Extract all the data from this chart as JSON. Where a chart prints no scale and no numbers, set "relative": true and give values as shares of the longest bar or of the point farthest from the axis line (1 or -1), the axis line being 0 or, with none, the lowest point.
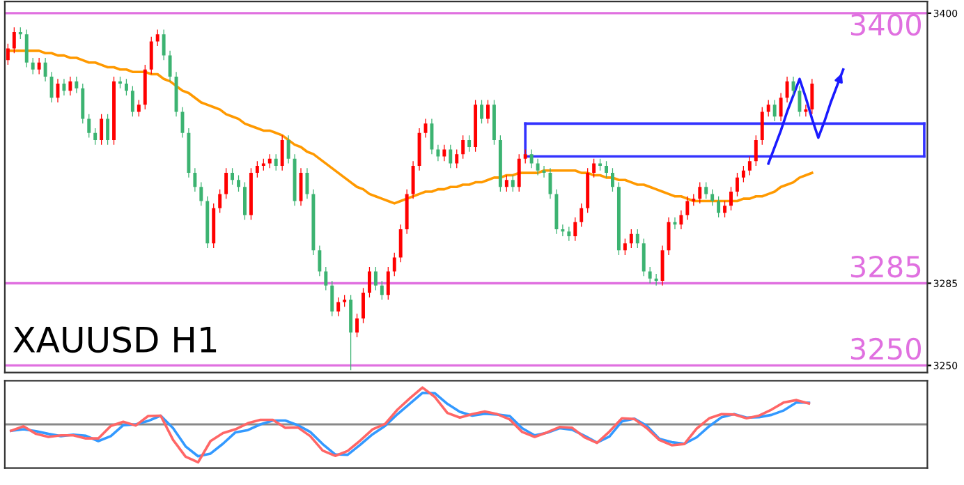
{
  "chart_data": [
    {
      "type": "candlestick",
      "title": "XAUUSD H1",
      "categories": [
        null,
        null,
        null,
        null,
        null,
        null,
        null,
        null,
        null,
        null,
        null,
        null,
        null,
        null,
        null,
        null,
        null,
        null,
        null,
        null,
        null,
        null,
        null,
        null,
        null,
        null,
        null,
        null,
        null,
        null,
        null,
        null,
        null,
        null,
        null,
        null,
        null,
        null,
        null,
        null,
        null,
        null,
        null,
        null,
        null,
        null,
        null,
        null,
        null,
        null,
        null,
        null,
        null,
        null,
        null,
        null,
        null,
        null,
        null,
        null,
        null,
        null,
        null,
        null,
        null,
        null,
        null,
        null,
        null,
        null,
        null,
        null,
        null,
        null,
        null,
        null,
        null,
        null,
        null,
        null,
        null,
        null,
        null,
        null,
        null,
        null,
        null,
        null,
        null,
        null,
        null,
        null,
        null,
        null,
        null,
        null,
        null,
        null,
        null,
        null,
        null,
        null,
        null,
        null,
        null,
        null,
        null,
        null,
        null,
        null,
        null,
        null,
        null,
        null,
        null,
        null,
        null,
        null,
        null,
        null,
        null,
        null,
        null,
        null,
        null,
        null,
        null,
        null,
        null,
        null,
        null,
        null,
        null,
        null,
        null,
        null,
        null,
        null,
        null,
        null,
        null,
        null,
        null,
        null,
        null,
        null,
        null,
        null
      ],
      "ohlc": [
        [
          3380,
          3387,
          3378,
          3385
        ],
        [
          3385,
          3394,
          3383,
          3392
        ],
        [
          3392,
          3394,
          3389,
          3391
        ],
        [
          3391,
          3393,
          3377,
          3379
        ],
        [
          3379,
          3381,
          3374,
          3376
        ],
        [
          3376,
          3381,
          3374,
          3379
        ],
        [
          3379,
          3381,
          3371,
          3373
        ],
        [
          3373,
          3375,
          3362,
          3364
        ],
        [
          3364,
          3372,
          3362,
          3370
        ],
        [
          3370,
          3372,
          3365,
          3367
        ],
        [
          3367,
          3373,
          3365,
          3371
        ],
        [
          3371,
          3373,
          3366,
          3368
        ],
        [
          3368,
          3370,
          3353,
          3355
        ],
        [
          3355,
          3357,
          3347,
          3349
        ],
        [
          3349,
          3351,
          3344,
          3346
        ],
        [
          3346,
          3357,
          3344,
          3355
        ],
        [
          3355,
          3357,
          3344,
          3346
        ],
        [
          3346,
          3373,
          3344,
          3371
        ],
        [
          3371,
          3373,
          3368,
          3370
        ],
        [
          3370,
          3372,
          3365,
          3367
        ],
        [
          3367,
          3369,
          3356,
          3358
        ],
        [
          3358,
          3363,
          3356,
          3361
        ],
        [
          3361,
          3378,
          3359,
          3376
        ],
        [
          3376,
          3390,
          3374,
          3388
        ],
        [
          3388,
          3393,
          3386,
          3391
        ],
        [
          3391,
          3393,
          3380,
          3382
        ],
        [
          3382,
          3384,
          3371,
          3373
        ],
        [
          3373,
          3375,
          3356,
          3358
        ],
        [
          3358,
          3360,
          3347,
          3349
        ],
        [
          3349,
          3351,
          3330,
          3332
        ],
        [
          3332,
          3334,
          3324,
          3326
        ],
        [
          3326,
          3328,
          3318,
          3320
        ],
        [
          3320,
          3322,
          3300,
          3302
        ],
        [
          3302,
          3319,
          3300,
          3317
        ],
        [
          3317,
          3325,
          3315,
          3323
        ],
        [
          3323,
          3334,
          3321,
          3332
        ],
        [
          3332,
          3334,
          3327,
          3329
        ],
        [
          3329,
          3331,
          3324,
          3326
        ],
        [
          3326,
          3328,
          3312,
          3314
        ],
        [
          3314,
          3334,
          3312,
          3332
        ],
        [
          3332,
          3337,
          3330,
          3335
        ],
        [
          3335,
          3338,
          3333,
          3336
        ],
        [
          3336,
          3340,
          3334,
          3338
        ],
        [
          3338,
          3340,
          3333,
          3335
        ],
        [
          3335,
          3348,
          3333,
          3346
        ],
        [
          3346,
          3348,
          3336,
          3338
        ],
        [
          3338,
          3340,
          3318,
          3320
        ],
        [
          3320,
          3334,
          3318,
          3332
        ],
        [
          3332,
          3334,
          3321,
          3323
        ],
        [
          3323,
          3325,
          3297,
          3299
        ],
        [
          3299,
          3301,
          3288,
          3290
        ],
        [
          3290,
          3292,
          3282,
          3284
        ],
        [
          3284,
          3286,
          3271,
          3273
        ],
        [
          3273,
          3279,
          3271,
          3277
        ],
        [
          3277,
          3280,
          3275,
          3278
        ],
        [
          3278,
          3280,
          3248,
          3264
        ],
        [
          3264,
          3272,
          3262,
          3270
        ],
        [
          3270,
          3283,
          3268,
          3281
        ],
        [
          3281,
          3292,
          3279,
          3290
        ],
        [
          3290,
          3292,
          3282,
          3284
        ],
        [
          3284,
          3286,
          3278,
          3280
        ],
        [
          3280,
          3292,
          3278,
          3290
        ],
        [
          3290,
          3298,
          3288,
          3296
        ],
        [
          3296,
          3310,
          3294,
          3308
        ],
        [
          3308,
          3325,
          3306,
          3323
        ],
        [
          3323,
          3337,
          3321,
          3335
        ],
        [
          3335,
          3351,
          3333,
          3349
        ],
        [
          3349,
          3355,
          3347,
          3353
        ],
        [
          3353,
          3355,
          3340,
          3342
        ],
        [
          3342,
          3344,
          3337,
          3339
        ],
        [
          3339,
          3344,
          3337,
          3342
        ],
        [
          3342,
          3344,
          3334,
          3336
        ],
        [
          3336,
          3342,
          3334,
          3340
        ],
        [
          3340,
          3348,
          3338,
          3346
        ],
        [
          3346,
          3348,
          3341,
          3343
        ],
        [
          3343,
          3363,
          3341,
          3361
        ],
        [
          3361,
          3363,
          3353,
          3355
        ],
        [
          3355,
          3363,
          3353,
          3361
        ],
        [
          3361,
          3363,
          3344,
          3346
        ],
        [
          3346,
          3348,
          3324,
          3326
        ],
        [
          3326,
          3331,
          3324,
          3329
        ],
        [
          3329,
          3331,
          3324,
          3326
        ],
        [
          3326,
          3340,
          3324,
          3338
        ],
        [
          3338,
          3342,
          3336,
          3340
        ],
        [
          3340,
          3342,
          3334,
          3336
        ],
        [
          3336,
          3338,
          3331,
          3333
        ],
        [
          3333,
          3335,
          3330,
          3332
        ],
        [
          3332,
          3334,
          3321,
          3323
        ],
        [
          3323,
          3325,
          3306,
          3308
        ],
        [
          3308,
          3310,
          3305,
          3307
        ],
        [
          3307,
          3309,
          3303,
          3305
        ],
        [
          3305,
          3313,
          3303,
          3311
        ],
        [
          3311,
          3319,
          3309,
          3317
        ],
        [
          3317,
          3334,
          3315,
          3332
        ],
        [
          3332,
          3338,
          3330,
          3336
        ],
        [
          3336,
          3338,
          3333,
          3335
        ],
        [
          3335,
          3337,
          3330,
          3332
        ],
        [
          3332,
          3334,
          3324,
          3326
        ],
        [
          3326,
          3328,
          3297,
          3299
        ],
        [
          3299,
          3304,
          3297,
          3302
        ],
        [
          3302,
          3308,
          3300,
          3306
        ],
        [
          3306,
          3308,
          3300,
          3302
        ],
        [
          3302,
          3304,
          3288,
          3290
        ],
        [
          3290,
          3292,
          3285,
          3287
        ],
        [
          3287,
          3289,
          3284,
          3286
        ],
        [
          3286,
          3301,
          3284,
          3299
        ],
        [
          3299,
          3313,
          3297,
          3311
        ],
        [
          3311,
          3313,
          3308,
          3310
        ],
        [
          3310,
          3316,
          3308,
          3314
        ],
        [
          3314,
          3322,
          3312,
          3320
        ],
        [
          3320,
          3323,
          3318,
          3321
        ],
        [
          3321,
          3328,
          3319,
          3326
        ],
        [
          3326,
          3328,
          3321,
          3323
        ],
        [
          3323,
          3325,
          3318,
          3320
        ],
        [
          3320,
          3322,
          3313,
          3315
        ],
        [
          3315,
          3320,
          3313,
          3318
        ],
        [
          3318,
          3326,
          3316,
          3324
        ],
        [
          3324,
          3332,
          3322,
          3330
        ],
        [
          3330,
          3335,
          3328,
          3333
        ],
        [
          3333,
          3339,
          3331,
          3337
        ],
        [
          3337,
          3348,
          3335,
          3346
        ],
        [
          3346,
          3360,
          3344,
          3358
        ],
        [
          3358,
          3363,
          3356,
          3361
        ],
        [
          3361,
          3363,
          3354,
          3356
        ],
        [
          3356,
          3366,
          3354,
          3364
        ],
        [
          3364,
          3373,
          3362,
          3371
        ],
        [
          3371,
          3373,
          3365,
          3367
        ],
        [
          3367,
          3369,
          3356,
          3358
        ],
        [
          3358,
          3361,
          3356,
          3359
        ],
        [
          3359,
          3372,
          3357,
          3370
        ],
        null,
        null,
        null,
        null,
        null,
        null,
        null,
        null,
        null,
        null,
        null,
        null,
        null,
        null,
        null,
        null,
        null,
        null
      ],
      "colors": [
        "#ff0000",
        "#ff0000",
        "#3cb371",
        "#3cb371",
        "#3cb371",
        "#ff0000",
        "#3cb371",
        "#3cb371",
        "#ff0000",
        "#3cb371",
        "#ff0000",
        "#3cb371",
        "#3cb371",
        "#3cb371",
        "#3cb371",
        "#ff0000",
        "#3cb371",
        "#ff0000",
        "#3cb371",
        "#3cb371",
        "#3cb371",
        "#ff0000",
        "#ff0000",
        "#ff0000",
        "#ff0000",
        "#3cb371",
        "#3cb371",
        "#3cb371",
        "#3cb371",
        "#3cb371",
        "#3cb371",
        "#3cb371",
        "#3cb371",
        "#ff0000",
        "#ff0000",
        "#ff0000",
        "#3cb371",
        "#3cb371",
        "#3cb371",
        "#ff0000",
        "#ff0000",
        "#ff0000",
        "#ff0000",
        "#3cb371",
        "#ff0000",
        "#3cb371",
        "#3cb371",
        "#ff0000",
        "#3cb371",
        "#3cb371",
        "#3cb371",
        "#3cb371",
        "#3cb371",
        "#ff0000",
        "#ff0000",
        "#3cb371",
        "#ff0000",
        "#ff0000",
        "#ff0000",
        "#3cb371",
        "#3cb371",
        "#ff0000",
        "#ff0000",
        "#ff0000",
        "#ff0000",
        "#ff0000",
        "#ff0000",
        "#ff0000",
        "#3cb371",
        "#3cb371",
        "#ff0000",
        "#3cb371",
        "#ff0000",
        "#ff0000",
        "#3cb371",
        "#ff0000",
        "#3cb371",
        "#ff0000",
        "#3cb371",
        "#3cb371",
        "#ff0000",
        "#3cb371",
        "#ff0000",
        "#ff0000",
        "#3cb371",
        "#3cb371",
        "#3cb371",
        "#3cb371",
        "#3cb371",
        "#3cb371",
        "#3cb371",
        "#ff0000",
        "#ff0000",
        "#ff0000",
        "#ff0000",
        "#3cb371",
        "#3cb371",
        "#3cb371",
        "#3cb371",
        "#ff0000",
        "#ff0000",
        "#3cb371",
        "#3cb371",
        "#3cb371",
        "#3cb371",
        "#ff0000",
        "#ff0000",
        "#3cb371",
        "#ff0000",
        "#ff0000",
        "#ff0000",
        "#ff0000",
        "#3cb371",
        "#3cb371",
        "#3cb371",
        "#ff0000",
        "#ff0000",
        "#ff0000",
        "#ff0000",
        "#ff0000",
        "#ff0000",
        "#ff0000",
        "#ff0000",
        "#3cb371",
        "#ff0000",
        "#ff0000",
        "#3cb371",
        "#3cb371",
        "#ff0000",
        "#ff0000",
        null,
        null,
        null,
        null,
        null,
        null,
        null,
        null,
        null,
        null,
        null,
        null,
        null,
        null,
        null,
        null,
        null,
        null
      ],
      "series": [
        {
          "type": "line",
          "color": "#ff9900",
          "values": [
            3384,
            3384,
            3384,
            3384,
            3384,
            3384,
            3383,
            3383,
            3382,
            3382,
            3381,
            3381,
            3380,
            3379,
            3379,
            3378,
            3377,
            3377,
            3376,
            3376,
            3375,
            3375,
            3375,
            3374,
            3374,
            3372,
            3371,
            3369,
            3367,
            3366,
            3364,
            3362,
            3361,
            3360,
            3359,
            3357,
            3356,
            3355,
            3353,
            3352,
            3351,
            3350,
            3350,
            3349,
            3348,
            3346,
            3344,
            3343,
            3341,
            3340,
            3338,
            3336,
            3334,
            3332,
            3330,
            3328,
            3326,
            3325,
            3323,
            3322,
            3321,
            3320,
            3319,
            3320,
            3321,
            3322,
            3323,
            3324,
            3324,
            3325,
            3325,
            3326,
            3326,
            3327,
            3327,
            3328,
            3328,
            3329,
            3330,
            3330,
            3331,
            3331,
            3332,
            3332,
            3332,
            3332,
            3333,
            3333,
            3333,
            3333,
            3333,
            3333,
            3332,
            3332,
            3331,
            3331,
            3330,
            3330,
            3329,
            3329,
            3328,
            3327,
            3327,
            3326,
            3325,
            3324,
            3323,
            3322,
            3322,
            3321,
            3320,
            3320,
            3320,
            3320,
            3320,
            3320,
            3320,
            3320,
            3321,
            3321,
            3322,
            3322,
            3323,
            3324,
            3326,
            3327,
            3328,
            3330,
            3331,
            3332,
            null,
            null,
            null,
            null,
            null,
            null,
            null,
            null,
            null,
            null,
            null,
            null,
            null,
            null,
            null,
            null,
            null,
            null
          ]
        },
        {
          "type": "line",
          "color": "#3333ff",
          "values": [
            null,
            null,
            null,
            null,
            null,
            null,
            null,
            null,
            null,
            null,
            null,
            null,
            null,
            null,
            null,
            null,
            null,
            null,
            null,
            null,
            null,
            null,
            null,
            null,
            null,
            null,
            null,
            null,
            null,
            null,
            null,
            null,
            null,
            null,
            null,
            null,
            null,
            null,
            null,
            null,
            null,
            null,
            null,
            null,
            null,
            null,
            null,
            null,
            null,
            null,
            null,
            null,
            null,
            null,
            null,
            null,
            null,
            null,
            null,
            null,
            null,
            null,
            null,
            null,
            null,
            null,
            null,
            null,
            null,
            null,
            null,
            null,
            null,
            null,
            null,
            null,
            null,
            null,
            null,
            null,
            null,
            null,
            null,
            3339,
            3339,
            3339,
            3339,
            3339,
            3339,
            3339,
            3339,
            3339,
            3339,
            3339,
            3339,
            3339,
            3339,
            3339,
            3339,
            3339,
            3339,
            3339,
            3339,
            3339,
            3339,
            3339,
            3339,
            3339,
            3339,
            3339,
            3339,
            3339,
            3339,
            3339,
            3339,
            3339,
            3339,
            3339,
            3339,
            3339,
            3339,
            3339,
            3339,
            3339,
            3339,
            3339,
            3339,
            3339,
            3339,
            3339,
            3339,
            3339,
            3339,
            3339,
            3339,
            3339,
            3339,
            3339,
            3339,
            3339,
            3339,
            3339,
            3339,
            3339,
            3339,
            3339,
            3339,
            3339
          ]
        },
        {
          "type": "line",
          "color": "#3333ff",
          "values": [
            null,
            null,
            null,
            null,
            null,
            null,
            null,
            null,
            null,
            null,
            null,
            null,
            null,
            null,
            null,
            null,
            null,
            null,
            null,
            null,
            null,
            null,
            null,
            null,
            null,
            null,
            null,
            null,
            null,
            null,
            null,
            null,
            null,
            null,
            null,
            null,
            null,
            null,
            null,
            null,
            null,
            null,
            null,
            null,
            null,
            null,
            null,
            null,
            null,
            null,
            null,
            null,
            null,
            null,
            null,
            null,
            null,
            null,
            null,
            null,
            null,
            null,
            null,
            null,
            null,
            null,
            null,
            null,
            null,
            null,
            null,
            null,
            null,
            null,
            null,
            null,
            null,
            null,
            null,
            null,
            null,
            null,
            null,
            3353,
            3353,
            3353,
            3353,
            3353,
            3353,
            3353,
            3353,
            3353,
            3353,
            3353,
            3353,
            3353,
            3353,
            3353,
            3353,
            3353,
            3353,
            3353,
            3353,
            3353,
            3353,
            3353,
            3353,
            3353,
            3353,
            3353,
            3353,
            3353,
            3353,
            3353,
            3353,
            3353,
            3353,
            3353,
            3353,
            3353,
            3353,
            3353,
            3353,
            3353,
            3353,
            3353,
            3353,
            3353,
            3353,
            3353,
            3353,
            3353,
            3353,
            3353,
            3353,
            3353,
            3353,
            3353,
            3353,
            3353,
            3353,
            3353,
            3353,
            3353,
            3353,
            3353,
            3353,
            3353
          ]
        },
        {
          "type": "line",
          "color": "#1a1aff",
          "values": [
            null,
            null,
            null,
            null,
            null,
            null,
            null,
            null,
            null,
            null,
            null,
            null,
            null,
            null,
            null,
            null,
            null,
            null,
            null,
            null,
            null,
            null,
            null,
            null,
            null,
            null,
            null,
            null,
            null,
            null,
            null,
            null,
            null,
            null,
            null,
            null,
            null,
            null,
            null,
            null,
            null,
            null,
            null,
            null,
            null,
            null,
            null,
            null,
            null,
            null,
            null,
            null,
            null,
            null,
            null,
            null,
            null,
            null,
            null,
            null,
            null,
            null,
            null,
            null,
            null,
            null,
            null,
            null,
            null,
            null,
            null,
            null,
            null,
            null,
            null,
            null,
            null,
            null,
            null,
            null,
            null,
            null,
            null,
            null,
            null,
            null,
            null,
            null,
            null,
            null,
            null,
            null,
            null,
            null,
            null,
            null,
            null,
            null,
            null,
            null,
            null,
            null,
            null,
            null,
            null,
            null,
            null,
            null,
            null,
            null,
            null,
            null,
            null,
            null,
            null,
            null,
            null,
            null,
            null,
            null,
            null,
            null,
            3336,
            3343,
            3350,
            3358,
            3365,
            3372,
            3364,
            3355,
            3347,
            3354,
            3362,
            3369,
            3376,
            null,
            null,
            null,
            null,
            null,
            null,
            null,
            null,
            null,
            null,
            null,
            null,
            null
          ]
        }
      ],
      "ylim": [
        3247,
        3405
      ],
      "yticks": [
        3250,
        3285,
        3400
      ],
      "ref_lines": [
        {
          "axis": "y",
          "value": 3400,
          "label": "3400",
          "color": "#e070e0"
        },
        {
          "axis": "y",
          "value": 3285,
          "label": "3285",
          "color": "#e070e0"
        },
        {
          "axis": "y",
          "value": 3250,
          "label": "3250",
          "color": "#e070e0"
        }
      ],
      "tick_labels": "y"
    },
    {
      "type": "line",
      "relative": true,
      "categories": [
        null,
        null,
        null,
        null,
        null,
        null,
        null,
        null,
        null,
        null,
        null,
        null,
        null,
        null,
        null,
        null,
        null,
        null,
        null,
        null,
        null,
        null,
        null,
        null,
        null,
        null,
        null,
        null,
        null,
        null,
        null,
        null,
        null,
        null,
        null,
        null,
        null,
        null,
        null,
        null,
        null,
        null,
        null,
        null,
        null,
        null,
        null,
        null,
        null,
        null,
        null,
        null,
        null,
        null,
        null,
        null,
        null,
        null,
        null,
        null,
        null,
        null,
        null,
        null,
        null,
        null,
        null,
        null,
        null,
        null,
        null,
        null,
        null,
        null
      ],
      "series": [
        {
          "color": "#3399ff",
          "values": [
            -0.17,
            -0.13,
            -0.18,
            -0.25,
            -0.31,
            -0.27,
            -0.3,
            -0.44,
            -0.31,
            -0.02,
            0.0,
            0.09,
            0.23,
            -0.1,
            -0.58,
            -0.84,
            -0.77,
            -0.51,
            -0.21,
            -0.15,
            0.0,
            0.1,
            0.1,
            -0.02,
            -0.2,
            -0.52,
            -0.79,
            -0.8,
            -0.54,
            -0.26,
            -0.04,
            0.27,
            0.55,
            0.83,
            0.82,
            0.54,
            0.33,
            0.23,
            0.28,
            0.26,
            0.22,
            -0.1,
            -0.29,
            -0.22,
            -0.1,
            -0.14,
            -0.3,
            -0.48,
            -0.32,
            0.08,
            0.15,
            -0.04,
            -0.38,
            -0.47,
            -0.51,
            -0.34,
            -0.05,
            0.19,
            0.27,
            0.18,
            0.19,
            0.25,
            0.37,
            0.58,
            0.57,
            null,
            null,
            null,
            null,
            null,
            null,
            null,
            null,
            null
          ]
        },
        {
          "color": "#ff6666",
          "values": [
            -0.17,
            -0.05,
            -0.25,
            -0.33,
            -0.29,
            -0.29,
            -0.37,
            -0.37,
            -0.04,
            0.07,
            -0.03,
            0.22,
            0.23,
            -0.41,
            -0.85,
            -1.0,
            -0.44,
            -0.23,
            -0.13,
            0.03,
            0.12,
            0.12,
            -0.09,
            -0.08,
            -0.31,
            -0.69,
            -0.83,
            -0.7,
            -0.43,
            -0.13,
            0.01,
            0.39,
            0.69,
            0.97,
            0.72,
            0.3,
            0.18,
            0.27,
            0.34,
            0.27,
            0.13,
            -0.2,
            -0.33,
            -0.21,
            -0.07,
            -0.09,
            -0.34,
            -0.49,
            -0.19,
            0.16,
            0.14,
            -0.1,
            -0.41,
            -0.55,
            -0.52,
            -0.11,
            0.16,
            0.27,
            0.26,
            0.16,
            0.23,
            0.39,
            0.58,
            0.64,
            0.55,
            null,
            null,
            null,
            null,
            null,
            null,
            null,
            null,
            null
          ]
        }
      ],
      "tick_labels": false
    }
  ]
}
